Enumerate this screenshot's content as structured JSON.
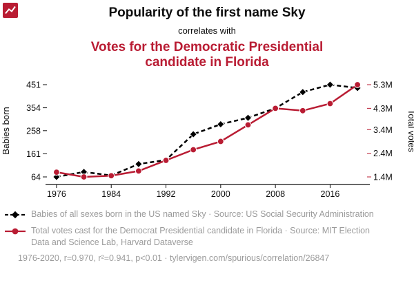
{
  "theme": {
    "accent": "#b91c33",
    "text": "#0d0d0d",
    "muted": "#9b9b9b"
  },
  "header": {
    "title": "Popularity of the first name Sky",
    "subtitle": "correlates with",
    "title2": "Votes for the Democratic Presidential candidate in Florida"
  },
  "chart_data": {
    "type": "line",
    "x": [
      1976,
      1980,
      1984,
      1988,
      1992,
      1996,
      2000,
      2004,
      2008,
      2012,
      2016,
      2020
    ],
    "x_axis": {
      "ticks": [
        1976,
        1984,
        1992,
        2000,
        2008,
        2016
      ],
      "range": [
        1975,
        2021
      ]
    },
    "left_axis": {
      "label": "Babies born",
      "ticks": [
        64,
        161,
        258,
        354,
        451
      ],
      "range": [
        64,
        451
      ]
    },
    "right_axis": {
      "label": "Total votes",
      "ticks": [
        "1.4M",
        "2.4M",
        "3.4M",
        "4.3M",
        "5.3M"
      ],
      "tick_values": [
        1400000,
        2400000,
        3400000,
        4300000,
        5300000
      ],
      "range": [
        1400000,
        5300000
      ]
    },
    "grid": false,
    "legend_position": "bottom-left",
    "series": [
      {
        "name": "Babies of all sexes born in the US named Sky",
        "axis": "left",
        "color": "#000000",
        "style": "dashed",
        "marker": "diamond",
        "values": [
          64,
          85,
          70,
          118,
          135,
          243,
          285,
          312,
          352,
          420,
          451,
          437
        ]
      },
      {
        "name": "Total votes cast for the Democrat Presidential candidate in Florida",
        "axis": "right",
        "color": "#b91c33",
        "style": "solid",
        "marker": "circle",
        "values": [
          1600000,
          1400000,
          1450000,
          1650000,
          2100000,
          2550000,
          2900000,
          3600000,
          4300000,
          4200000,
          4500000,
          5300000
        ]
      }
    ]
  },
  "legend": [
    {
      "text": "Babies of all sexes born in the US named Sky · Source: US Social Security Administration"
    },
    {
      "text": "Total votes cast for the Democrat Presidential candidate in Florida · Source: MIT Election Data and Science Lab, Harvard Dataverse"
    }
  ],
  "footer": {
    "text": "1976-2020, r=0.970, r²=0.941, p<0.01 · tylervigen.com/spurious/correlation/26847"
  }
}
